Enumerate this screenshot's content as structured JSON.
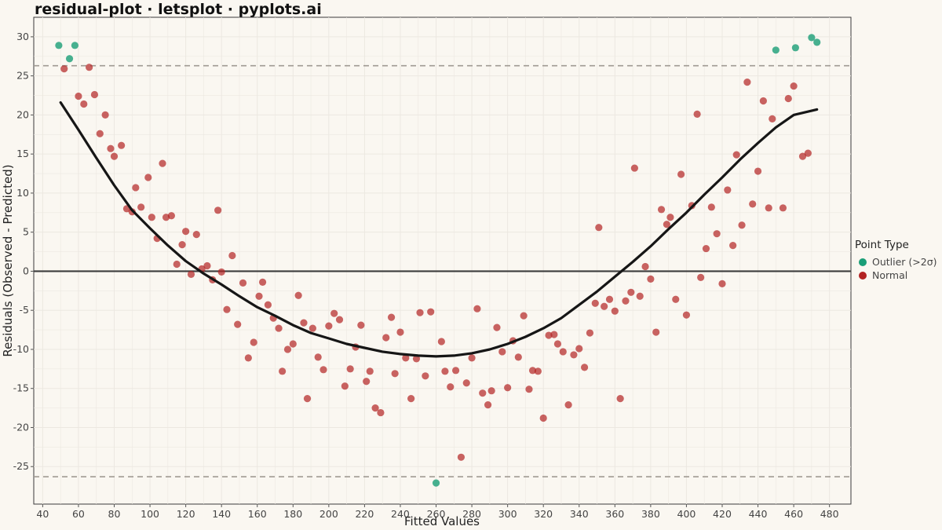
{
  "chart_data": {
    "type": "scatter",
    "title": "residual-plot · letsplot · pyplots.ai",
    "xlabel": "Fitted Values",
    "ylabel": "Residuals (Observed - Predicted)",
    "xlim": [
      35,
      492
    ],
    "ylim": [
      -29.8,
      32.5
    ],
    "x_ticks": [
      40,
      60,
      80,
      100,
      120,
      140,
      160,
      180,
      200,
      220,
      240,
      260,
      280,
      300,
      320,
      340,
      360,
      380,
      400,
      420,
      440,
      460,
      480
    ],
    "y_ticks": [
      -25,
      -20,
      -15,
      -10,
      -5,
      0,
      5,
      10,
      15,
      20,
      25,
      30
    ],
    "grid": true,
    "zero_line": 0,
    "threshold_lines": [
      26.3,
      -26.3
    ],
    "legend": {
      "title": "Point Type",
      "position": "right",
      "entries": [
        {
          "label": "Outlier (>2σ)",
          "color": "#1a9e77"
        },
        {
          "label": "Normal",
          "color": "#b22222"
        }
      ]
    },
    "colors": {
      "outlier": "#1a9e77",
      "normal": "#b22222",
      "smooth": "#161616",
      "zero_line": "#3d3d3d",
      "threshold": "#a09a93",
      "panel_background": "#faf7f1",
      "grid": "#ece8e1"
    },
    "series": [
      {
        "name": "Outlier (>2σ)",
        "points": [
          [
            49,
            28.9
          ],
          [
            55,
            27.2
          ],
          [
            58,
            28.9
          ],
          [
            260,
            -27.1
          ],
          [
            450,
            28.3
          ],
          [
            461,
            28.6
          ],
          [
            470,
            29.9
          ],
          [
            473,
            29.3
          ]
        ]
      },
      {
        "name": "Normal",
        "points": [
          [
            52,
            25.9
          ],
          [
            60,
            22.4
          ],
          [
            63,
            21.4
          ],
          [
            66,
            26.1
          ],
          [
            69,
            22.6
          ],
          [
            72,
            17.6
          ],
          [
            75,
            20.0
          ],
          [
            78,
            15.7
          ],
          [
            80,
            14.7
          ],
          [
            84,
            16.1
          ],
          [
            87,
            8.0
          ],
          [
            90,
            7.6
          ],
          [
            92,
            10.7
          ],
          [
            95,
            8.2
          ],
          [
            99,
            12.0
          ],
          [
            101,
            6.9
          ],
          [
            104,
            4.2
          ],
          [
            107,
            13.8
          ],
          [
            109,
            6.9
          ],
          [
            112,
            7.1
          ],
          [
            115,
            0.9
          ],
          [
            118,
            3.4
          ],
          [
            120,
            5.1
          ],
          [
            123,
            -0.4
          ],
          [
            126,
            4.7
          ],
          [
            129,
            0.3
          ],
          [
            132,
            0.7
          ],
          [
            135,
            -1.1
          ],
          [
            138,
            7.8
          ],
          [
            140,
            -0.1
          ],
          [
            143,
            -4.9
          ],
          [
            146,
            2.0
          ],
          [
            149,
            -6.8
          ],
          [
            152,
            -1.5
          ],
          [
            155,
            -11.1
          ],
          [
            158,
            -9.1
          ],
          [
            161,
            -3.2
          ],
          [
            163,
            -1.4
          ],
          [
            166,
            -4.3
          ],
          [
            169,
            -6.0
          ],
          [
            172,
            -7.3
          ],
          [
            174,
            -12.8
          ],
          [
            177,
            -10.0
          ],
          [
            180,
            -9.3
          ],
          [
            183,
            -3.1
          ],
          [
            186,
            -6.6
          ],
          [
            188,
            -16.3
          ],
          [
            191,
            -7.3
          ],
          [
            194,
            -11.0
          ],
          [
            197,
            -12.6
          ],
          [
            200,
            -7.0
          ],
          [
            203,
            -5.4
          ],
          [
            206,
            -6.2
          ],
          [
            209,
            -14.7
          ],
          [
            212,
            -12.5
          ],
          [
            215,
            -9.7
          ],
          [
            218,
            -6.9
          ],
          [
            221,
            -14.1
          ],
          [
            223,
            -12.8
          ],
          [
            226,
            -17.5
          ],
          [
            229,
            -18.1
          ],
          [
            232,
            -8.5
          ],
          [
            235,
            -5.9
          ],
          [
            237,
            -13.1
          ],
          [
            240,
            -7.8
          ],
          [
            243,
            -11.1
          ],
          [
            246,
            -16.3
          ],
          [
            249,
            -11.2
          ],
          [
            251,
            -5.3
          ],
          [
            254,
            -13.4
          ],
          [
            257,
            -5.2
          ],
          [
            263,
            -9.0
          ],
          [
            265,
            -12.8
          ],
          [
            268,
            -14.8
          ],
          [
            271,
            -12.7
          ],
          [
            274,
            -23.8
          ],
          [
            277,
            -14.3
          ],
          [
            280,
            -11.1
          ],
          [
            283,
            -4.8
          ],
          [
            286,
            -15.6
          ],
          [
            289,
            -17.1
          ],
          [
            291,
            -15.3
          ],
          [
            294,
            -7.2
          ],
          [
            297,
            -10.3
          ],
          [
            300,
            -14.9
          ],
          [
            303,
            -8.9
          ],
          [
            306,
            -11.0
          ],
          [
            309,
            -5.7
          ],
          [
            312,
            -15.1
          ],
          [
            314,
            -12.7
          ],
          [
            317,
            -12.8
          ],
          [
            320,
            -18.8
          ],
          [
            323,
            -8.2
          ],
          [
            326,
            -8.1
          ],
          [
            328,
            -9.3
          ],
          [
            331,
            -10.3
          ],
          [
            334,
            -17.1
          ],
          [
            337,
            -10.7
          ],
          [
            340,
            -9.9
          ],
          [
            343,
            -12.3
          ],
          [
            346,
            -7.9
          ],
          [
            349,
            -4.1
          ],
          [
            351,
            5.6
          ],
          [
            354,
            -4.5
          ],
          [
            357,
            -3.6
          ],
          [
            360,
            -5.1
          ],
          [
            363,
            -16.3
          ],
          [
            366,
            -3.8
          ],
          [
            369,
            -2.7
          ],
          [
            371,
            13.2
          ],
          [
            374,
            -3.2
          ],
          [
            377,
            0.6
          ],
          [
            380,
            -1.0
          ],
          [
            383,
            -7.8
          ],
          [
            386,
            7.9
          ],
          [
            389,
            6.0
          ],
          [
            391,
            6.9
          ],
          [
            394,
            -3.6
          ],
          [
            397,
            12.4
          ],
          [
            400,
            -5.6
          ],
          [
            403,
            8.4
          ],
          [
            406,
            20.1
          ],
          [
            408,
            -0.8
          ],
          [
            411,
            2.9
          ],
          [
            414,
            8.2
          ],
          [
            417,
            4.8
          ],
          [
            420,
            -1.6
          ],
          [
            423,
            10.4
          ],
          [
            426,
            3.3
          ],
          [
            428,
            14.9
          ],
          [
            431,
            5.9
          ],
          [
            434,
            24.2
          ],
          [
            437,
            8.6
          ],
          [
            440,
            12.8
          ],
          [
            443,
            21.8
          ],
          [
            446,
            8.1
          ],
          [
            448,
            19.5
          ],
          [
            454,
            8.1
          ],
          [
            457,
            22.1
          ],
          [
            460,
            23.7
          ],
          [
            465,
            14.7
          ],
          [
            468,
            15.1
          ]
        ]
      }
    ],
    "smooth_curve": [
      [
        50,
        21.6
      ],
      [
        60,
        18.1
      ],
      [
        70,
        14.5
      ],
      [
        80,
        11.0
      ],
      [
        90,
        7.8
      ],
      [
        100,
        5.5
      ],
      [
        110,
        3.3
      ],
      [
        120,
        1.3
      ],
      [
        130,
        -0.3
      ],
      [
        140,
        -1.7
      ],
      [
        150,
        -3.2
      ],
      [
        160,
        -4.6
      ],
      [
        170,
        -5.7
      ],
      [
        180,
        -6.9
      ],
      [
        190,
        -7.9
      ],
      [
        200,
        -8.6
      ],
      [
        210,
        -9.3
      ],
      [
        220,
        -9.8
      ],
      [
        230,
        -10.3
      ],
      [
        240,
        -10.6
      ],
      [
        250,
        -10.8
      ],
      [
        260,
        -10.9
      ],
      [
        270,
        -10.8
      ],
      [
        280,
        -10.5
      ],
      [
        290,
        -10.0
      ],
      [
        300,
        -9.3
      ],
      [
        310,
        -8.4
      ],
      [
        320,
        -7.3
      ],
      [
        330,
        -6.0
      ],
      [
        340,
        -4.3
      ],
      [
        350,
        -2.6
      ],
      [
        360,
        -0.7
      ],
      [
        370,
        1.2
      ],
      [
        380,
        3.2
      ],
      [
        390,
        5.4
      ],
      [
        400,
        7.5
      ],
      [
        410,
        9.8
      ],
      [
        420,
        12.0
      ],
      [
        430,
        14.3
      ],
      [
        440,
        16.4
      ],
      [
        450,
        18.4
      ],
      [
        460,
        20.0
      ],
      [
        473,
        20.7
      ]
    ]
  }
}
